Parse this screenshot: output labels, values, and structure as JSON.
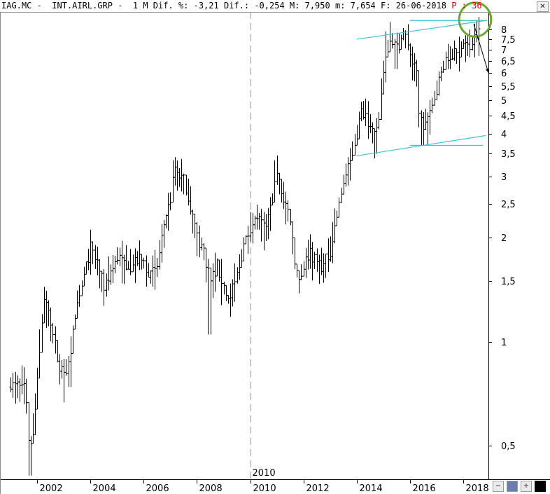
{
  "header": {
    "symbol": "IAG.MC",
    "name": "INT.AIRL.GRP",
    "period": "1 M",
    "pct_label": "Dif. %:",
    "pct_value": "-3,21",
    "dif_label": "Dif.:",
    "dif_value": "-0,254",
    "max_label": "M:",
    "max_value": "7,950",
    "min_label": "m:",
    "min_value": "7,654",
    "date_label": "F:",
    "date_value": "26-06-2018",
    "p_label": "P",
    "p_value": "36"
  },
  "window": {
    "close_icon": "close-icon"
  },
  "toolbar": {
    "items": [
      {
        "name": "minus-icon",
        "glyph": "−"
      },
      {
        "name": "save-icon",
        "glyph": ""
      },
      {
        "name": "plus-icon",
        "glyph": "+"
      },
      {
        "name": "black-square-icon",
        "glyph": ""
      }
    ]
  },
  "colors": {
    "bars": "#000000",
    "trendline": "#3cc0d6",
    "ellipse": "#6aa82e",
    "arrow": "#000000",
    "divider": "#999999"
  },
  "chart_data": {
    "type": "ohlc",
    "scale": "log",
    "ylim": [
      0.4,
      9.0
    ],
    "xlim": [
      2000.6,
      2018.95
    ],
    "yticks": [
      {
        "value": 0.5,
        "label": "0,5"
      },
      {
        "value": 1,
        "label": "1"
      },
      {
        "value": 1.5,
        "label": "1,5"
      },
      {
        "value": 2,
        "label": "2"
      },
      {
        "value": 2.5,
        "label": "2,5"
      },
      {
        "value": 3,
        "label": "3"
      },
      {
        "value": 3.5,
        "label": "3,5"
      },
      {
        "value": 4,
        "label": "4"
      },
      {
        "value": 4.5,
        "label": "4,5"
      },
      {
        "value": 5,
        "label": "5"
      },
      {
        "value": 5.5,
        "label": "5,5"
      },
      {
        "value": 6,
        "label": "6"
      },
      {
        "value": 6.5,
        "label": "6,5"
      },
      {
        "value": 7,
        "label": "7"
      },
      {
        "value": 7.5,
        "label": "7,5"
      },
      {
        "value": 8,
        "label": "8"
      }
    ],
    "xticks": [
      {
        "value": 2002,
        "label": "2002"
      },
      {
        "value": 2004,
        "label": "2004"
      },
      {
        "value": 2006,
        "label": "2006"
      },
      {
        "value": 2008,
        "label": "2008"
      },
      {
        "value": 2010,
        "label": "2010"
      },
      {
        "value": 2012,
        "label": "2012"
      },
      {
        "value": 2014,
        "label": "2014"
      },
      {
        "value": 2016,
        "label": "2016"
      },
      {
        "value": 2018,
        "label": "2018"
      }
    ],
    "divider": {
      "x": 2010,
      "label": "2010"
    },
    "series_path": [
      [
        2001.0,
        0.74
      ],
      [
        2001.3,
        0.75
      ],
      [
        2001.55,
        0.75
      ],
      [
        2001.7,
        0.48
      ],
      [
        2001.85,
        0.56
      ],
      [
        2002.05,
        0.9
      ],
      [
        2002.25,
        1.35
      ],
      [
        2002.5,
        1.15
      ],
      [
        2002.75,
        0.9
      ],
      [
        2003.0,
        0.78
      ],
      [
        2003.25,
        0.95
      ],
      [
        2003.5,
        1.25
      ],
      [
        2003.75,
        1.55
      ],
      [
        2004.0,
        1.85
      ],
      [
        2004.25,
        1.7
      ],
      [
        2004.5,
        1.45
      ],
      [
        2004.75,
        1.6
      ],
      [
        2005.0,
        1.75
      ],
      [
        2005.25,
        1.7
      ],
      [
        2005.5,
        1.65
      ],
      [
        2005.75,
        1.72
      ],
      [
        2006.0,
        1.7
      ],
      [
        2006.25,
        1.55
      ],
      [
        2006.5,
        1.65
      ],
      [
        2006.75,
        2.1
      ],
      [
        2007.0,
        2.6
      ],
      [
        2007.15,
        3.2
      ],
      [
        2007.5,
        2.9
      ],
      [
        2007.75,
        2.5
      ],
      [
        2008.0,
        2.0
      ],
      [
        2008.25,
        1.85
      ],
      [
        2008.5,
        1.5
      ],
      [
        2008.75,
        1.65
      ],
      [
        2009.0,
        1.45
      ],
      [
        2009.2,
        1.3
      ],
      [
        2009.5,
        1.55
      ],
      [
        2009.75,
        1.9
      ],
      [
        2010.0,
        2.15
      ],
      [
        2010.25,
        2.3
      ],
      [
        2010.5,
        2.1
      ],
      [
        2010.75,
        2.4
      ],
      [
        2011.0,
        3.05
      ],
      [
        2011.25,
        2.6
      ],
      [
        2011.5,
        2.3
      ],
      [
        2011.65,
        1.75
      ],
      [
        2011.85,
        1.5
      ],
      [
        2012.0,
        1.65
      ],
      [
        2012.25,
        1.85
      ],
      [
        2012.5,
        1.7
      ],
      [
        2012.75,
        1.65
      ],
      [
        2013.0,
        1.85
      ],
      [
        2013.25,
        2.3
      ],
      [
        2013.5,
        2.9
      ],
      [
        2013.75,
        3.3
      ],
      [
        2014.0,
        4.0
      ],
      [
        2014.2,
        4.8
      ],
      [
        2014.5,
        4.3
      ],
      [
        2014.7,
        3.8
      ],
      [
        2014.85,
        4.5
      ],
      [
        2015.0,
        6.2
      ],
      [
        2015.25,
        7.6
      ],
      [
        2015.5,
        7.0
      ],
      [
        2015.75,
        7.8
      ],
      [
        2015.9,
        7.5
      ],
      [
        2016.05,
        6.5
      ],
      [
        2016.25,
        6.0
      ],
      [
        2016.35,
        4.5
      ],
      [
        2016.5,
        4.2
      ],
      [
        2016.75,
        4.5
      ],
      [
        2017.0,
        5.4
      ],
      [
        2017.25,
        6.3
      ],
      [
        2017.5,
        6.7
      ],
      [
        2017.75,
        6.8
      ],
      [
        2018.0,
        7.3
      ],
      [
        2018.25,
        7.1
      ],
      [
        2018.5,
        7.7
      ],
      [
        2018.6,
        7.75
      ]
    ],
    "lows": [
      {
        "x": 2001.7,
        "y": 0.41
      },
      {
        "x": 2003.2,
        "y": 0.74
      },
      {
        "x": 2004.55,
        "y": 1.35
      },
      {
        "x": 2006.1,
        "y": 1.5
      },
      {
        "x": 2008.45,
        "y": 1.05
      },
      {
        "x": 2009.25,
        "y": 1.18
      },
      {
        "x": 2011.8,
        "y": 1.38
      },
      {
        "x": 2014.7,
        "y": 3.5
      },
      {
        "x": 2016.45,
        "y": 3.7
      }
    ],
    "highs": [
      {
        "x": 2002.25,
        "y": 1.42
      },
      {
        "x": 2004.0,
        "y": 2.0
      },
      {
        "x": 2007.1,
        "y": 3.35
      },
      {
        "x": 2010.95,
        "y": 3.35
      },
      {
        "x": 2015.05,
        "y": 7.9
      },
      {
        "x": 2015.85,
        "y": 7.95
      },
      {
        "x": 2018.4,
        "y": 8.1
      }
    ],
    "trendlines": [
      {
        "x1": 2014.0,
        "y1": 7.5,
        "x2": 2018.85,
        "y2": 8.5
      },
      {
        "x1": 2016.0,
        "y1": 8.5,
        "x2": 2018.9,
        "y2": 8.5
      },
      {
        "x1": 2014.0,
        "y1": 3.45,
        "x2": 2018.85,
        "y2": 3.95
      },
      {
        "x1": 2016.0,
        "y1": 3.7,
        "x2": 2018.75,
        "y2": 3.7
      }
    ],
    "ellipse": {
      "cx": 2018.45,
      "cy": 8.55,
      "rx_years": 0.6,
      "ry_ratio": 1.12
    },
    "arrow": {
      "x1": 2018.4,
      "y1": 8.3,
      "x2": 2018.95,
      "y2": 6.0
    }
  }
}
